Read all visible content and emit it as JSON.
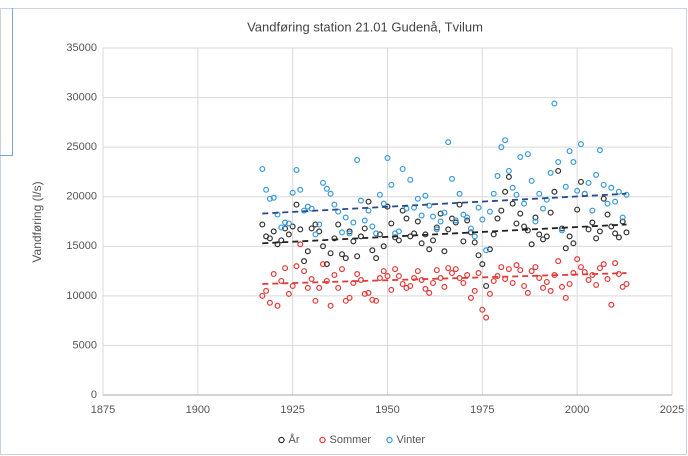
{
  "chart_data": {
    "type": "scatter",
    "title": "Vandføring station 21.01 Gudenå, Tvilum",
    "y_label": "Vandføring (l/s)",
    "xlim": [
      1875,
      2025
    ],
    "xticks": [
      1875,
      1900,
      1925,
      1950,
      1975,
      2000,
      2025
    ],
    "ylim": [
      0,
      35000
    ],
    "yticks": [
      0,
      5000,
      10000,
      15000,
      20000,
      25000,
      30000,
      35000
    ],
    "grid": true,
    "legend": "bottom",
    "x": [
      1917,
      1918,
      1919,
      1920,
      1921,
      1922,
      1923,
      1924,
      1925,
      1926,
      1927,
      1928,
      1929,
      1930,
      1931,
      1932,
      1933,
      1934,
      1935,
      1936,
      1937,
      1938,
      1939,
      1940,
      1941,
      1942,
      1943,
      1944,
      1945,
      1946,
      1947,
      1948,
      1949,
      1950,
      1951,
      1952,
      1953,
      1954,
      1955,
      1956,
      1957,
      1958,
      1959,
      1960,
      1961,
      1962,
      1963,
      1964,
      1965,
      1966,
      1967,
      1968,
      1969,
      1970,
      1971,
      1972,
      1973,
      1974,
      1975,
      1976,
      1977,
      1978,
      1979,
      1980,
      1981,
      1982,
      1983,
      1984,
      1985,
      1986,
      1987,
      1988,
      1989,
      1990,
      1991,
      1992,
      1993,
      1994,
      1995,
      1996,
      1997,
      1998,
      1999,
      2000,
      2001,
      2002,
      2003,
      2004,
      2005,
      2006,
      2007,
      2008,
      2009,
      2010,
      2011,
      2012,
      2013
    ],
    "series": [
      {
        "name": "År",
        "color": "#333333",
        "values": [
          17200,
          16000,
          15800,
          16500,
          15200,
          15600,
          16800,
          16200,
          17000,
          19200,
          16700,
          13500,
          14500,
          16800,
          17200,
          16500,
          15000,
          13200,
          14300,
          15800,
          17200,
          14200,
          13800,
          16500,
          15500,
          14000,
          16000,
          16800,
          19500,
          14600,
          13800,
          16200,
          15000,
          19000,
          17300,
          15900,
          15600,
          18600,
          17800,
          16000,
          16300,
          17500,
          15300,
          16200,
          14700,
          15600,
          16900,
          18300,
          14500,
          16700,
          17800,
          17400,
          19200,
          15500,
          17600,
          16400,
          15400,
          14100,
          13200,
          11000,
          14700,
          16200,
          17800,
          18600,
          20500,
          22000,
          19300,
          17300,
          18300,
          17000,
          16600,
          15200,
          17900,
          16200,
          15700,
          16000,
          18400,
          20500,
          22600,
          16800,
          14800,
          16000,
          15300,
          18700,
          21500,
          20300,
          16700,
          17400,
          15800,
          16500,
          19800,
          18200,
          17000,
          16300,
          15900,
          17500,
          16400
        ]
      },
      {
        "name": "Sommer",
        "color": "#e03a3a",
        "values": [
          10000,
          10500,
          9300,
          12200,
          9000,
          11500,
          12800,
          10200,
          11000,
          13000,
          15200,
          12500,
          10800,
          11700,
          9500,
          10800,
          13200,
          11500,
          9000,
          12100,
          10800,
          12700,
          9500,
          9800,
          11300,
          12200,
          11600,
          10200,
          10300,
          9600,
          9500,
          11800,
          12500,
          12000,
          10600,
          12700,
          12000,
          11200,
          10800,
          11000,
          11800,
          12500,
          11600,
          10700,
          10300,
          11300,
          12600,
          11800,
          10900,
          12800,
          12300,
          12700,
          11800,
          11300,
          12100,
          9800,
          10500,
          12300,
          8600,
          7800,
          10200,
          11500,
          12000,
          12900,
          11700,
          12700,
          11300,
          13100,
          12600,
          11000,
          10300,
          12500,
          12900,
          11800,
          10800,
          11400,
          10500,
          12100,
          13500,
          10900,
          9800,
          11200,
          12300,
          13700,
          12900,
          12400,
          11600,
          12100,
          11100,
          12800,
          13200,
          11700,
          9100,
          13300,
          12200,
          10900,
          11200
        ]
      },
      {
        "name": "Vinter",
        "color": "#3a9ad9",
        "values": [
          22800,
          20700,
          19800,
          19900,
          18200,
          16900,
          17400,
          17300,
          20400,
          22700,
          20700,
          18600,
          19000,
          18800,
          16200,
          17200,
          21400,
          20800,
          20300,
          19200,
          18500,
          16400,
          17900,
          16300,
          17400,
          23700,
          19600,
          17600,
          18600,
          17000,
          16300,
          20200,
          19300,
          23900,
          21200,
          16300,
          16500,
          22800,
          18800,
          21700,
          18900,
          19800,
          18100,
          20100,
          19100,
          18000,
          16700,
          17500,
          18400,
          25500,
          21800,
          17600,
          20300,
          18200,
          17900,
          16800,
          16000,
          18900,
          17700,
          14600,
          18500,
          20300,
          22100,
          25000,
          25700,
          22600,
          20900,
          20200,
          24000,
          19300,
          24300,
          21600,
          17500,
          20300,
          18800,
          19700,
          22400,
          29400,
          23500,
          16600,
          21000,
          24600,
          23500,
          20600,
          25300,
          20300,
          21400,
          18600,
          22200,
          24700,
          21200,
          19300,
          20900,
          19500,
          20500,
          17900,
          20200
        ]
      }
    ],
    "trendlines": [
      {
        "color": "#222222",
        "x": [
          1917,
          2013
        ],
        "values": [
          15300,
          17200
        ]
      },
      {
        "color": "#e03a3a",
        "x": [
          1917,
          2013
        ],
        "values": [
          11200,
          12300
        ]
      },
      {
        "color": "#2a4a8a",
        "x": [
          1917,
          2013
        ],
        "values": [
          18300,
          20300
        ]
      }
    ]
  }
}
